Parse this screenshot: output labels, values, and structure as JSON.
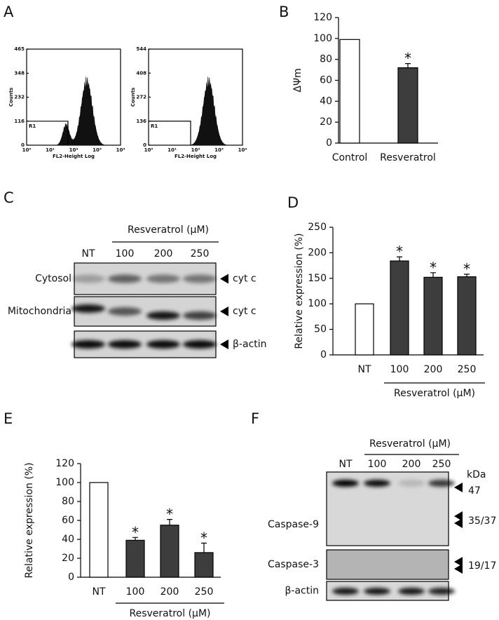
{
  "figure_a": {
    "label": "A",
    "plots": [
      {
        "y_label": "Counts",
        "x_label": "FL2-Height Log",
        "gate": "R1",
        "gate_level": 116,
        "yticks": [
          0,
          116,
          232,
          348,
          465
        ],
        "xticks": [
          "10⁰",
          "10¹",
          "10²",
          "10³",
          "10⁴"
        ]
      },
      {
        "y_label": "Counts",
        "x_label": "FL2-Height Log",
        "gate": "R1",
        "gate_level": 136,
        "yticks": [
          0,
          136,
          272,
          408,
          544
        ],
        "xticks": [
          "10⁰",
          "10¹",
          "10²",
          "10³",
          "10⁴"
        ]
      }
    ]
  },
  "figure_c": {
    "label": "C",
    "treatment": "Resveratrol (μM)",
    "lanes": [
      "NT",
      "100",
      "200",
      "250"
    ],
    "rows": [
      {
        "name": "Cytosol",
        "target": "cyt c"
      },
      {
        "name": "Mitochondria",
        "target": "cyt c"
      },
      {
        "name": "",
        "target": "β-actin"
      }
    ]
  },
  "figure_f": {
    "label": "F",
    "treatment": "Resveratrol (μM)",
    "lanes": [
      "NT",
      "100",
      "200",
      "250"
    ],
    "unit": "kDa",
    "rows": [
      "Caspase-9",
      "Caspase-3",
      "β-actin"
    ],
    "sizes": [
      "47",
      "35/37",
      "19/17"
    ]
  },
  "chart_data": [
    {
      "type": "bar",
      "panel": "B",
      "y_label": "ΔΨm",
      "categories": [
        "Control",
        "Resveratrol"
      ],
      "series": [
        {
          "values": [
            99,
            72
          ],
          "errors": [
            null,
            4
          ],
          "colors": [
            "#ffffff",
            "#3d3d3d"
          ]
        }
      ],
      "annotations": [
        null,
        "*"
      ],
      "ylim": [
        0,
        120
      ],
      "yticks": [
        0,
        20,
        40,
        60,
        80,
        100,
        120
      ]
    },
    {
      "type": "bar",
      "panel": "D",
      "y_label": "Relative expression (%)",
      "x_label": "Resveratrol (μM)",
      "categories": [
        "NT",
        "100",
        "200",
        "250"
      ],
      "series": [
        {
          "values": [
            100,
            184,
            152,
            153
          ],
          "errors": [
            null,
            8,
            9,
            5
          ],
          "colors": [
            "#ffffff",
            "#3d3d3d",
            "#3d3d3d",
            "#3d3d3d"
          ]
        }
      ],
      "annotations": [
        null,
        "*",
        "*",
        "*"
      ],
      "ylim": [
        0,
        250
      ],
      "yticks": [
        0,
        50,
        100,
        150,
        200,
        250
      ]
    },
    {
      "type": "bar",
      "panel": "E",
      "y_label": "Relative expression (%)",
      "x_label": "Resveratrol (μM)",
      "categories": [
        "NT",
        "100",
        "200",
        "250"
      ],
      "series": [
        {
          "values": [
            100,
            39,
            55,
            26
          ],
          "errors": [
            null,
            3,
            6,
            10
          ],
          "colors": [
            "#ffffff",
            "#3d3d3d",
            "#3d3d3d",
            "#3d3d3d"
          ]
        }
      ],
      "annotations": [
        null,
        "*",
        "*",
        "*"
      ],
      "ylim": [
        0,
        120
      ],
      "yticks": [
        0,
        20,
        40,
        60,
        80,
        100,
        120
      ]
    }
  ]
}
